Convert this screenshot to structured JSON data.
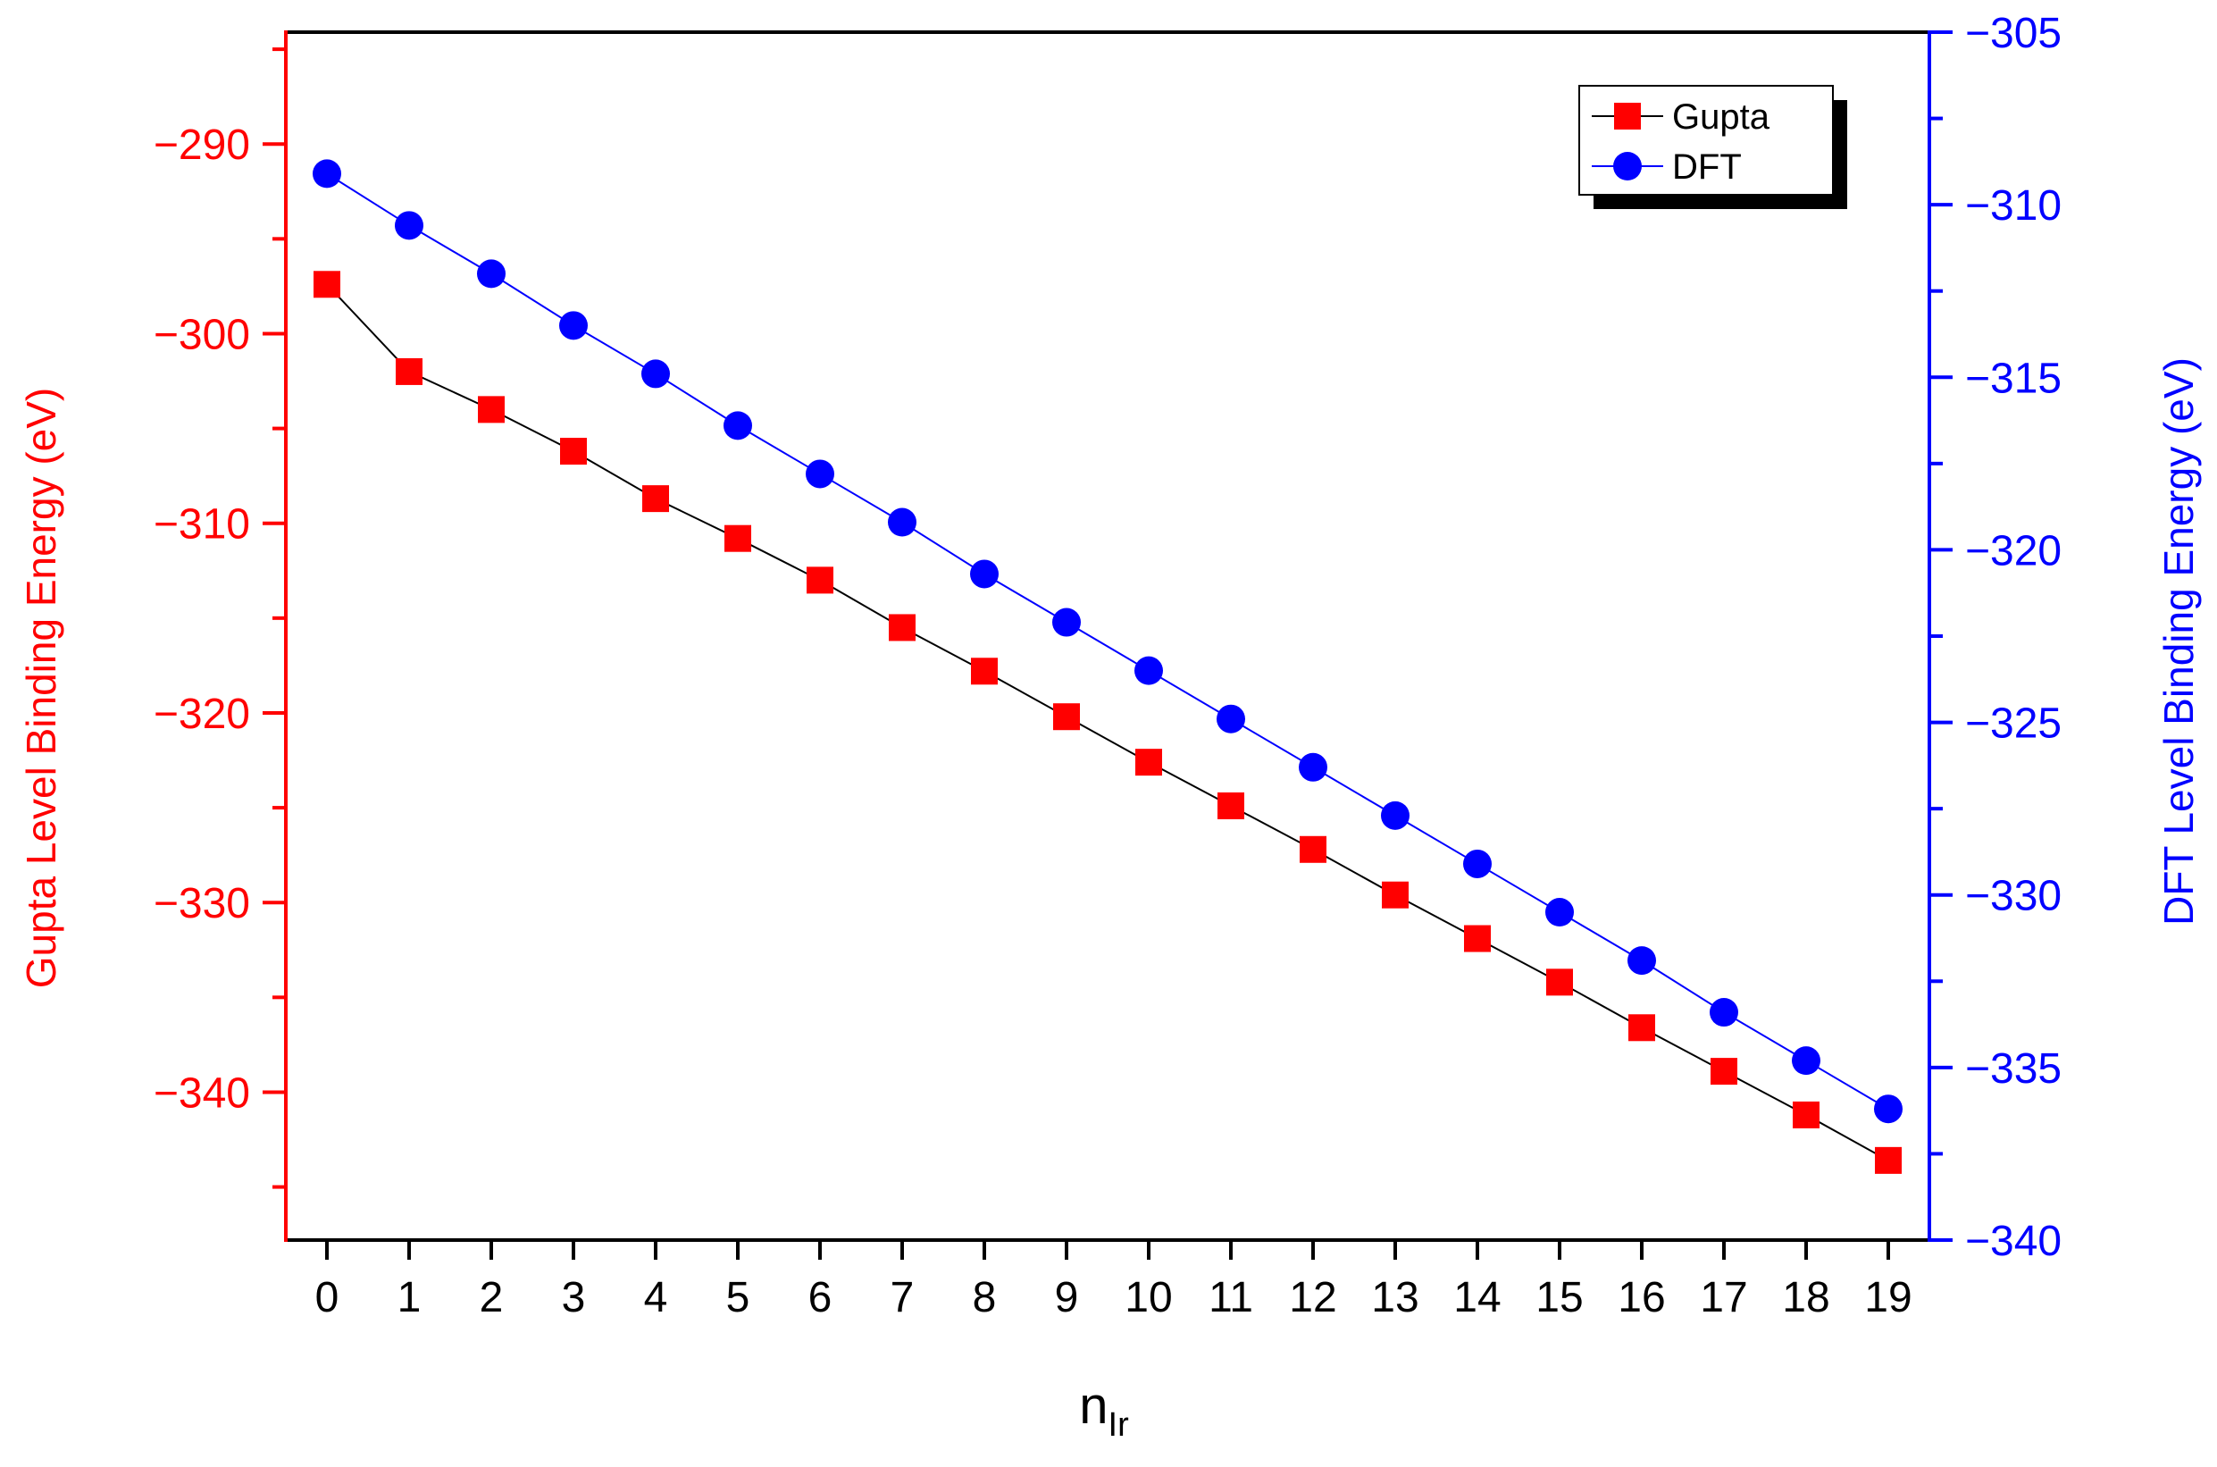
{
  "chart_data": {
    "type": "line",
    "x": [
      0,
      1,
      2,
      3,
      4,
      5,
      6,
      7,
      8,
      9,
      10,
      11,
      12,
      13,
      14,
      15,
      16,
      17,
      18,
      19
    ],
    "xlabel": "n",
    "xlabel_sub": "Ir",
    "xlim": [
      -0.5,
      19.5
    ],
    "xticks": [
      0,
      1,
      2,
      3,
      4,
      5,
      6,
      7,
      8,
      9,
      10,
      11,
      12,
      13,
      14,
      15,
      16,
      17,
      18,
      19
    ],
    "grid": false,
    "legend_position": "top-right",
    "y_left": {
      "label": "Gupta Level Binding Energy (eV)",
      "lim": [
        -347.8,
        -284.1
      ],
      "ticks": [
        -290,
        -300,
        -310,
        -320,
        -330,
        -340
      ],
      "tick_labels": [
        "−290",
        "−300",
        "−310",
        "−320",
        "−330",
        "−340"
      ],
      "color": "#ff0000"
    },
    "y_right": {
      "label": "DFT Level Binding Energy (eV)",
      "lim": [
        -340,
        -305
      ],
      "ticks": [
        -305,
        -310,
        -315,
        -320,
        -325,
        -330,
        -335,
        -340
      ],
      "tick_labels": [
        "−305",
        "−310",
        "−315",
        "−320",
        "−325",
        "−330",
        "−335",
        "−340"
      ],
      "color": "#0000ff"
    },
    "series": [
      {
        "name": "Gupta",
        "axis": "left",
        "marker": "square",
        "marker_color": "#ff0000",
        "line_color": "#000000",
        "values": [
          -297.4,
          -302.0,
          -304.0,
          -306.2,
          -308.7,
          -310.8,
          -313.0,
          -315.5,
          -317.8,
          -320.2,
          -322.6,
          -324.9,
          -327.2,
          -329.6,
          -331.9,
          -334.2,
          -336.6,
          -338.9,
          -341.2,
          -343.6
        ]
      },
      {
        "name": "DFT",
        "axis": "right",
        "marker": "circle",
        "marker_color": "#0000ff",
        "line_color": "#0000ff",
        "values": [
          -309.1,
          -310.6,
          -312.0,
          -313.5,
          -314.9,
          -316.4,
          -317.8,
          -319.2,
          -320.7,
          -322.1,
          -323.5,
          -324.9,
          -326.3,
          -327.7,
          -329.1,
          -330.5,
          -331.9,
          -333.4,
          -334.8,
          -336.2
        ]
      }
    ]
  }
}
